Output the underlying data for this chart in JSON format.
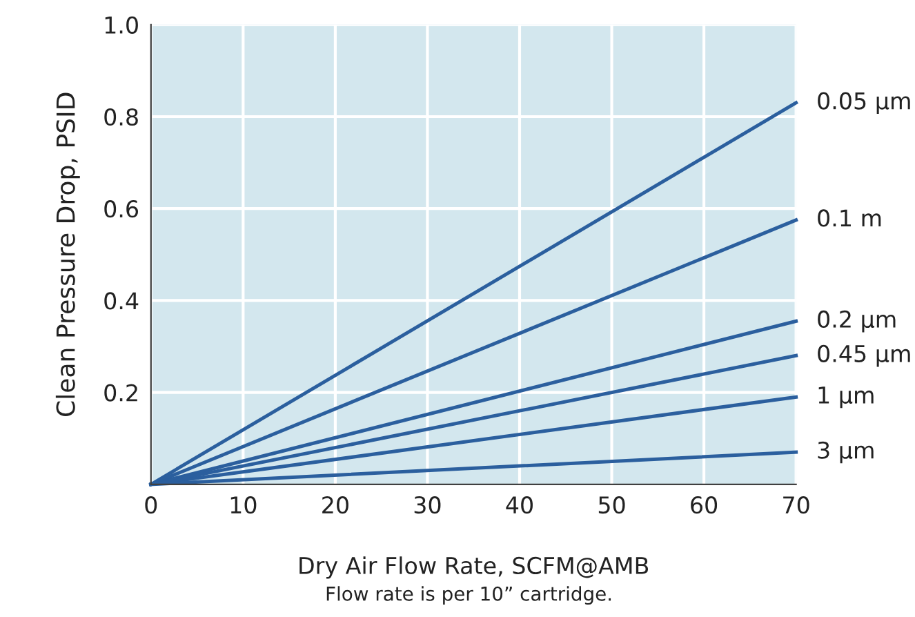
{
  "chart_data": {
    "type": "line",
    "xlabel": "Dry Air Flow Rate, SCFM@AMB",
    "ylabel": "Clean Pressure Drop, PSID",
    "annotations": [
      "Flow rate is per 10” cartridge."
    ],
    "x": [
      0,
      70
    ],
    "series": [
      {
        "name": "0.05 µm",
        "color": "#2b5f9e",
        "values": [
          0,
          0.83
        ]
      },
      {
        "name": "0.1 m",
        "color": "#2b5f9e",
        "values": [
          0,
          0.575
        ]
      },
      {
        "name": "0.2 µm",
        "color": "#2b5f9e",
        "values": [
          0,
          0.355
        ]
      },
      {
        "name": "0.45 µm",
        "color": "#2b5f9e",
        "values": [
          0,
          0.28
        ]
      },
      {
        "name": "1 µm",
        "color": "#2b5f9e",
        "values": [
          0,
          0.19
        ]
      },
      {
        "name": "3 µm",
        "color": "#2b5f9e",
        "values": [
          0,
          0.07
        ]
      }
    ],
    "xlim": [
      0,
      70
    ],
    "xticks": [
      0,
      10,
      20,
      30,
      40,
      50,
      60,
      70
    ],
    "ylim": [
      0,
      1.0
    ],
    "yticks": [
      0.2,
      0.4,
      0.6,
      0.8,
      {
        "value": 1.0,
        "label": "1.0"
      }
    ],
    "grid": true,
    "legend": false,
    "marker": "none",
    "line_style": "solid"
  }
}
